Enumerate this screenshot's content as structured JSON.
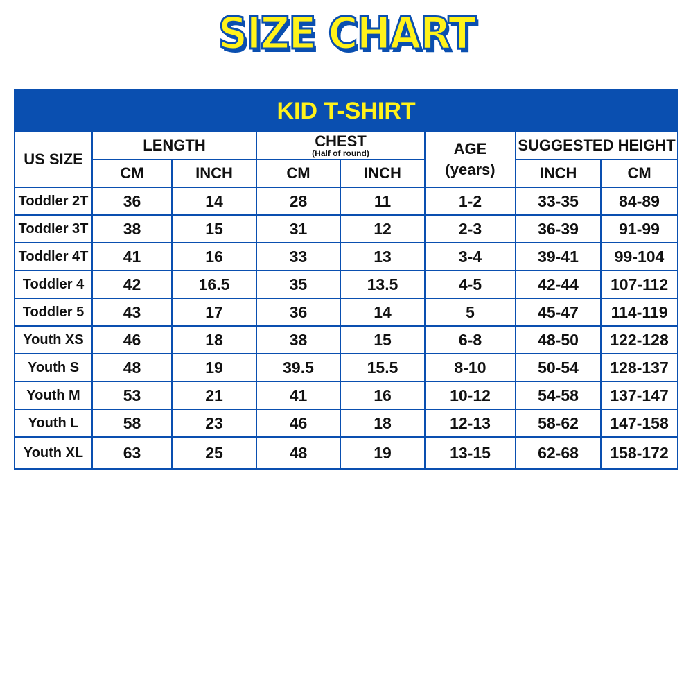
{
  "title": "SIZE CHART",
  "table": {
    "banner": "KID T-SHIRT",
    "headers": {
      "us_size": "US SIZE",
      "length": "LENGTH",
      "chest": "CHEST",
      "chest_note": "(Half of round)",
      "age": "AGE",
      "age_unit": "(years)",
      "height": "SUGGESTED HEIGHT",
      "length_cm": "CM",
      "length_inch": "INCH",
      "chest_cm": "CM",
      "chest_inch": "INCH",
      "height_inch": "INCH",
      "height_cm": "CM"
    },
    "rows": [
      [
        "Toddler 2T",
        "36",
        "14",
        "28",
        "11",
        "1-2",
        "33-35",
        "84-89"
      ],
      [
        "Toddler 3T",
        "38",
        "15",
        "31",
        "12",
        "2-3",
        "36-39",
        "91-99"
      ],
      [
        "Toddler 4T",
        "41",
        "16",
        "33",
        "13",
        "3-4",
        "39-41",
        "99-104"
      ],
      [
        "Toddler 4",
        "42",
        "16.5",
        "35",
        "13.5",
        "4-5",
        "42-44",
        "107-112"
      ],
      [
        "Toddler 5",
        "43",
        "17",
        "36",
        "14",
        "5",
        "45-47",
        "114-119"
      ],
      [
        "Youth XS",
        "46",
        "18",
        "38",
        "15",
        "6-8",
        "48-50",
        "122-128"
      ],
      [
        "Youth S",
        "48",
        "19",
        "39.5",
        "15.5",
        "8-10",
        "50-54",
        "128-137"
      ],
      [
        "Youth M",
        "53",
        "21",
        "41",
        "16",
        "10-12",
        "54-58",
        "137-147"
      ],
      [
        "Youth L",
        "58",
        "23",
        "46",
        "18",
        "12-13",
        "58-62",
        "147-158"
      ],
      [
        "Youth XL",
        "63",
        "25",
        "48",
        "19",
        "13-15",
        "62-68",
        "158-172"
      ]
    ]
  },
  "colors": {
    "blue": "#0a4fb0",
    "yellow": "#fff21a"
  }
}
